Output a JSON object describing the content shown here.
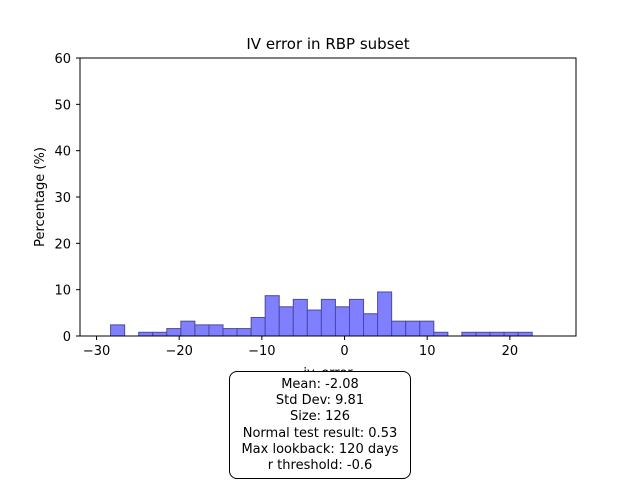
{
  "chart_data": {
    "type": "bar",
    "title": "IV error in RBP subset",
    "xlabel": "iv_error",
    "ylabel": "Percentage (%)",
    "xlim": [
      -32,
      28
    ],
    "ylim": [
      0,
      60
    ],
    "xticks": [
      -30,
      -20,
      -10,
      0,
      10,
      20
    ],
    "xtick_labels": [
      "−30",
      "−20",
      "−10",
      "0",
      "10",
      "20"
    ],
    "yticks": [
      0,
      10,
      20,
      30,
      40,
      50,
      60
    ],
    "grid": false,
    "bar_color": "#8080ff",
    "bar_edge_color": "#4a4a9a",
    "bin_width": 1.7,
    "bins": [
      {
        "x": -28.3,
        "value": 2.4
      },
      {
        "x": -26.6,
        "value": 0.0
      },
      {
        "x": -24.9,
        "value": 0.8
      },
      {
        "x": -23.2,
        "value": 0.8
      },
      {
        "x": -21.5,
        "value": 1.6
      },
      {
        "x": -19.8,
        "value": 3.2
      },
      {
        "x": -18.1,
        "value": 2.4
      },
      {
        "x": -16.4,
        "value": 2.4
      },
      {
        "x": -14.7,
        "value": 1.6
      },
      {
        "x": -13.0,
        "value": 1.6
      },
      {
        "x": -11.3,
        "value": 4.0
      },
      {
        "x": -9.6,
        "value": 8.7
      },
      {
        "x": -7.9,
        "value": 6.3
      },
      {
        "x": -6.2,
        "value": 7.9
      },
      {
        "x": -4.5,
        "value": 5.6
      },
      {
        "x": -2.8,
        "value": 7.9
      },
      {
        "x": -1.1,
        "value": 6.3
      },
      {
        "x": 0.6,
        "value": 7.9
      },
      {
        "x": 2.3,
        "value": 4.8
      },
      {
        "x": 4.0,
        "value": 9.5
      },
      {
        "x": 5.7,
        "value": 3.2
      },
      {
        "x": 7.4,
        "value": 3.2
      },
      {
        "x": 9.1,
        "value": 3.2
      },
      {
        "x": 10.8,
        "value": 0.8
      },
      {
        "x": 12.5,
        "value": 0.0
      },
      {
        "x": 14.2,
        "value": 0.8
      },
      {
        "x": 15.9,
        "value": 0.8
      },
      {
        "x": 17.6,
        "value": 0.8
      },
      {
        "x": 19.3,
        "value": 0.8
      },
      {
        "x": 21.0,
        "value": 0.8
      }
    ]
  },
  "stats": {
    "mean": "Mean: -2.08",
    "std_dev": "Std Dev: 9.81",
    "size": "Size: 126",
    "normal_test": "Normal test result: 0.53",
    "max_lookback": "Max lookback: 120 days",
    "r_threshold": "r threshold: -0.6"
  }
}
